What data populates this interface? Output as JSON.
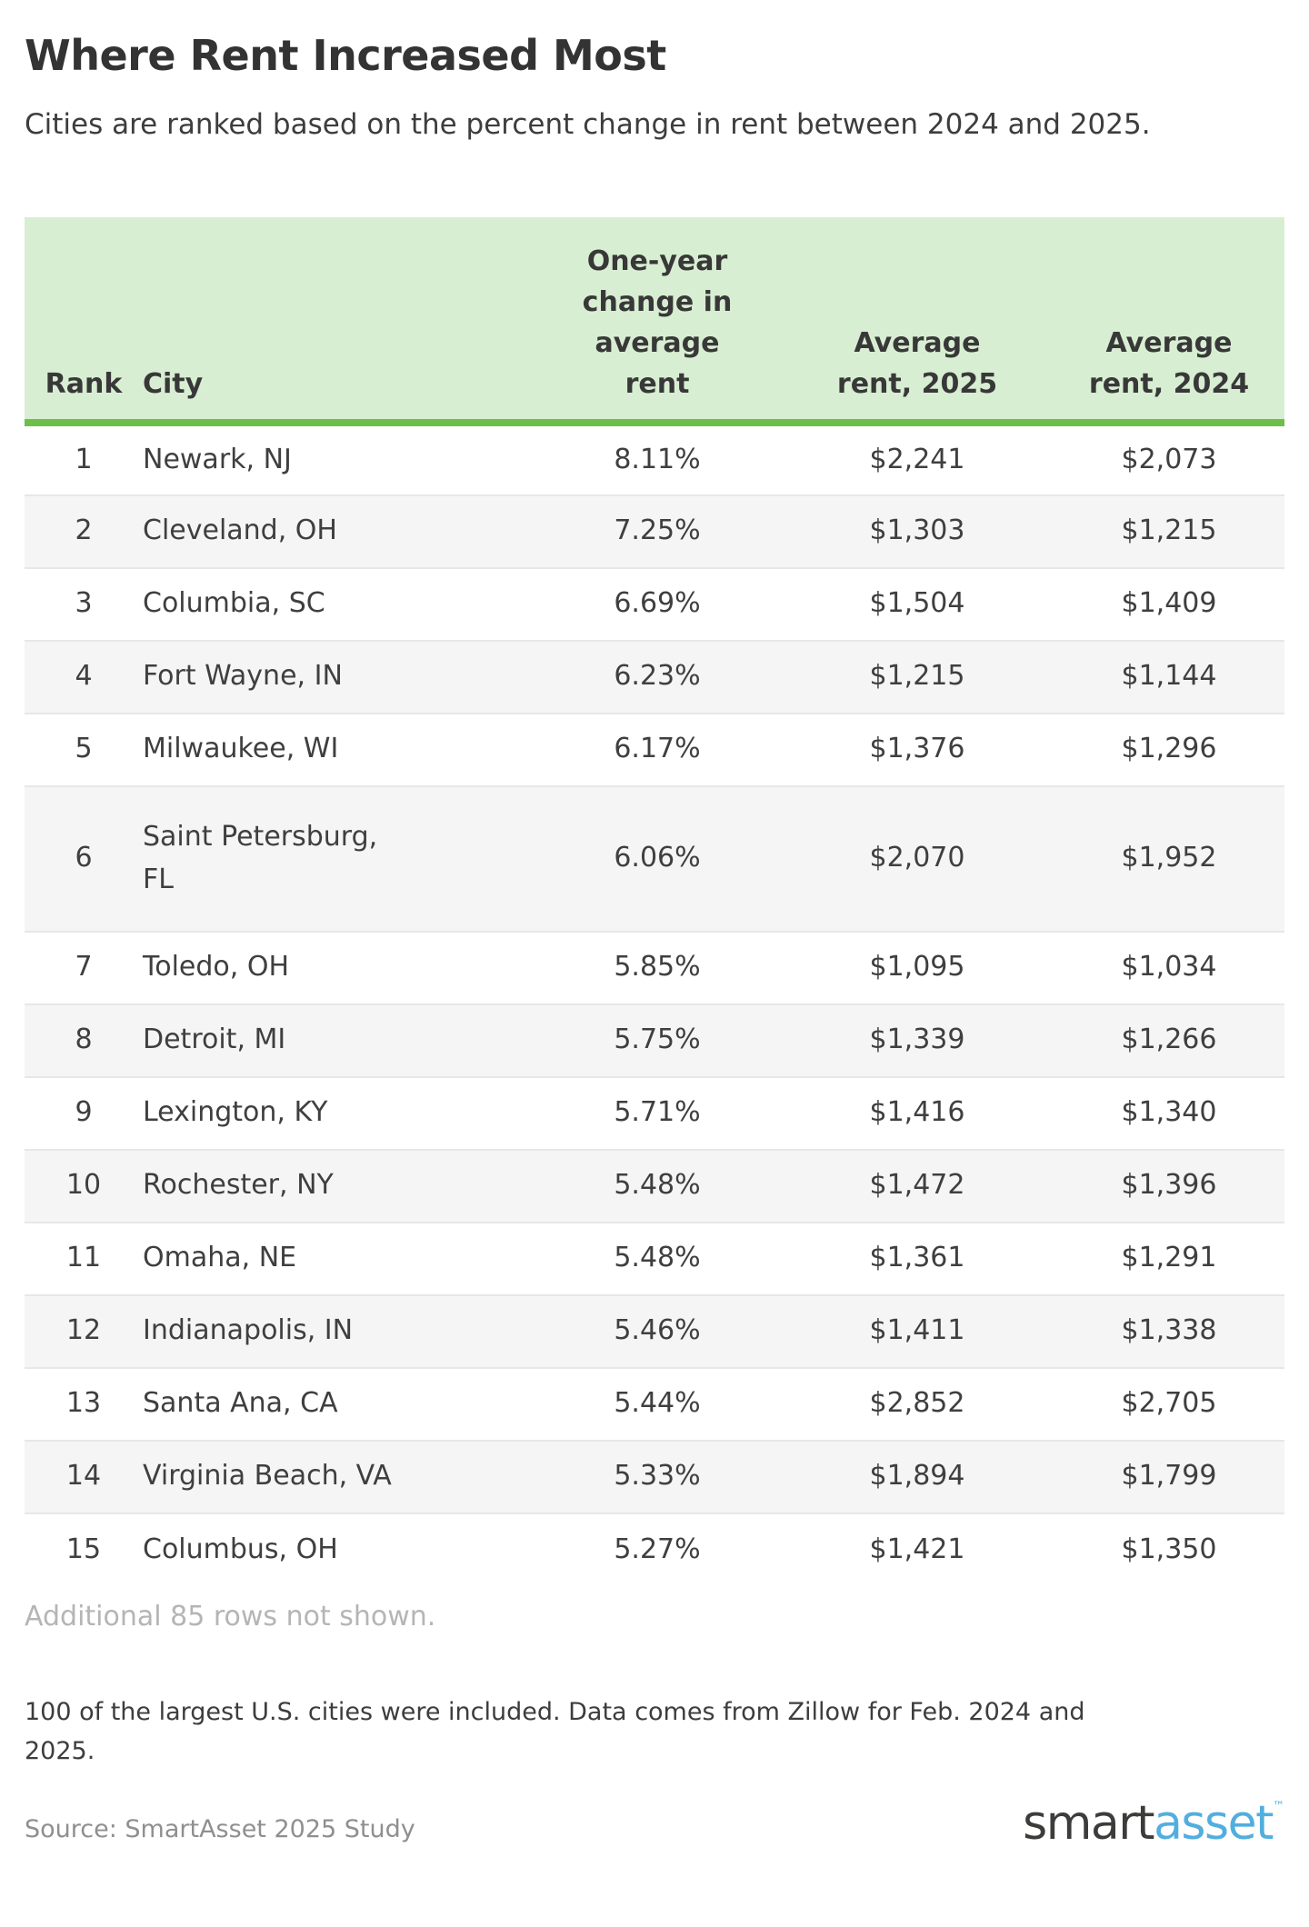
{
  "header": {
    "title": "Where Rent Increased Most",
    "subtitle": "Cities are ranked based on the percent change in rent between 2024 and 2025."
  },
  "chart_data": {
    "type": "table",
    "title": "Where Rent Increased Most",
    "columns": [
      "Rank",
      "City",
      "One-year change in average rent",
      "Average rent, 2025",
      "Average rent, 2024"
    ],
    "rows": [
      {
        "rank": "1",
        "city": "Newark, NJ",
        "change": "8.11%",
        "rent_2025": "$2,241",
        "rent_2024": "$2,073"
      },
      {
        "rank": "2",
        "city": "Cleveland, OH",
        "change": "7.25%",
        "rent_2025": "$1,303",
        "rent_2024": "$1,215"
      },
      {
        "rank": "3",
        "city": "Columbia, SC",
        "change": "6.69%",
        "rent_2025": "$1,504",
        "rent_2024": "$1,409"
      },
      {
        "rank": "4",
        "city": "Fort Wayne, IN",
        "change": "6.23%",
        "rent_2025": "$1,215",
        "rent_2024": "$1,144"
      },
      {
        "rank": "5",
        "city": "Milwaukee, WI",
        "change": "6.17%",
        "rent_2025": "$1,376",
        "rent_2024": "$1,296"
      },
      {
        "rank": "6",
        "city": "Saint Petersburg, FL",
        "change": "6.06%",
        "rent_2025": "$2,070",
        "rent_2024": "$1,952"
      },
      {
        "rank": "7",
        "city": "Toledo, OH",
        "change": "5.85%",
        "rent_2025": "$1,095",
        "rent_2024": "$1,034"
      },
      {
        "rank": "8",
        "city": "Detroit, MI",
        "change": "5.75%",
        "rent_2025": "$1,339",
        "rent_2024": "$1,266"
      },
      {
        "rank": "9",
        "city": "Lexington, KY",
        "change": "5.71%",
        "rent_2025": "$1,416",
        "rent_2024": "$1,340"
      },
      {
        "rank": "10",
        "city": "Rochester, NY",
        "change": "5.48%",
        "rent_2025": "$1,472",
        "rent_2024": "$1,396"
      },
      {
        "rank": "11",
        "city": "Omaha, NE",
        "change": "5.48%",
        "rent_2025": "$1,361",
        "rent_2024": "$1,291"
      },
      {
        "rank": "12",
        "city": "Indianapolis, IN",
        "change": "5.46%",
        "rent_2025": "$1,411",
        "rent_2024": "$1,338"
      },
      {
        "rank": "13",
        "city": "Santa Ana, CA",
        "change": "5.44%",
        "rent_2025": "$2,852",
        "rent_2024": "$2,705"
      },
      {
        "rank": "14",
        "city": "Virginia Beach, VA",
        "change": "5.33%",
        "rent_2025": "$1,894",
        "rent_2024": "$1,799"
      },
      {
        "rank": "15",
        "city": "Columbus, OH",
        "change": "5.27%",
        "rent_2025": "$1,421",
        "rent_2024": "$1,350"
      }
    ]
  },
  "notes": {
    "additional": "Additional 85 rows not shown.",
    "methodology": "100 of the largest U.S. cities were included. Data comes from Zillow for Feb. 2024 and 2025.",
    "source": "Source: SmartAsset 2025 Study"
  },
  "branding": {
    "logo_part1": "smart",
    "logo_part2": "asset",
    "logo_tm": "™"
  },
  "colors": {
    "header_bg": "#d8eed2",
    "header_border": "#6cc04a",
    "row_alt_bg": "#f5f5f6",
    "row_divider": "#e7e7e7",
    "text_dark": "#3d3d3d",
    "text_muted": "#8f8f8f",
    "text_faint": "#b5b5b5",
    "logo_blue": "#52aede"
  }
}
